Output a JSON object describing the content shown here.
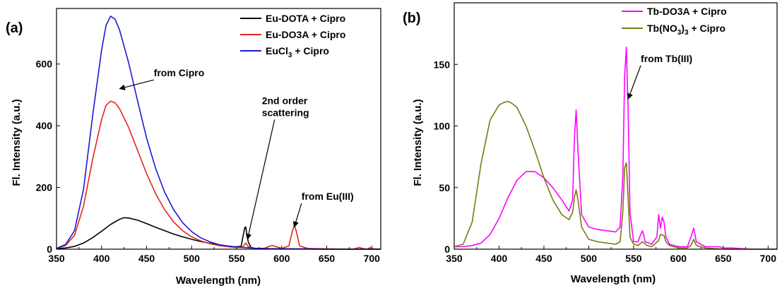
{
  "chart_data": [
    {
      "type": "line",
      "panel_label": "(a)",
      "xlabel": "Wavelength (nm)",
      "ylabel": "Fl. Intensity (a.u.)",
      "xlim": [
        350,
        710
      ],
      "ylim": [
        0,
        780
      ],
      "xticks": [
        350,
        400,
        450,
        500,
        550,
        600,
        650,
        700
      ],
      "yticks": [
        0,
        200,
        400,
        600
      ],
      "legend_position": "top-right",
      "series": [
        {
          "name": "Eu-DOTA + Cipro",
          "color": "#000000",
          "x": [
            350,
            360,
            370,
            380,
            390,
            400,
            410,
            420,
            425,
            430,
            440,
            450,
            460,
            470,
            480,
            490,
            500,
            510,
            520,
            530,
            540,
            550,
            555,
            557,
            559,
            560,
            561,
            563,
            566,
            570,
            580,
            600,
            650,
            710
          ],
          "y": [
            2,
            4,
            9,
            20,
            37,
            58,
            80,
            97,
            102,
            101,
            94,
            83,
            71,
            60,
            49,
            40,
            32,
            25,
            19,
            14,
            10,
            7,
            10,
            40,
            70,
            72,
            55,
            22,
            6,
            3,
            2,
            1,
            0,
            0
          ]
        },
        {
          "name": "Eu-DO3A + Cipro",
          "color": "#e8251f",
          "x": [
            350,
            360,
            370,
            380,
            390,
            400,
            405,
            410,
            415,
            420,
            430,
            440,
            450,
            460,
            470,
            480,
            490,
            500,
            510,
            520,
            530,
            540,
            550,
            557,
            560,
            563,
            570,
            580,
            587,
            590,
            593,
            600,
            608,
            612,
            614,
            616,
            620,
            630,
            650,
            680,
            686,
            690,
            695,
            698,
            702,
            710
          ],
          "y": [
            3,
            12,
            45,
            140,
            290,
            420,
            466,
            480,
            474,
            455,
            395,
            320,
            245,
            180,
            128,
            88,
            60,
            40,
            27,
            18,
            12,
            8,
            5,
            8,
            20,
            8,
            3,
            2,
            10,
            12,
            9,
            3,
            10,
            60,
            78,
            60,
            10,
            2,
            1,
            0,
            6,
            2,
            0,
            5,
            1,
            0
          ]
        },
        {
          "name": "EuCl$_3$ + Cipro",
          "legend_text": "EuCl",
          "legend_sub": "3",
          "legend_suffix": " + Cipro",
          "color": "#1a1ad6",
          "x": [
            350,
            360,
            370,
            380,
            390,
            400,
            405,
            410,
            415,
            420,
            430,
            440,
            450,
            460,
            470,
            480,
            490,
            500,
            510,
            520,
            530,
            540,
            550,
            560,
            570,
            580,
            600,
            620,
            650,
            680,
            710
          ],
          "y": [
            3,
            15,
            60,
            195,
            430,
            645,
            725,
            755,
            745,
            710,
            605,
            480,
            360,
            262,
            185,
            128,
            86,
            57,
            37,
            24,
            15,
            10,
            7,
            5,
            3,
            2,
            1,
            1,
            0,
            0,
            0
          ]
        }
      ],
      "annotations": [
        {
          "text": "from Cipro",
          "lines": [
            "from Cipro"
          ],
          "x": 458,
          "y": 560,
          "arrow_to": [
            420,
            520
          ]
        },
        {
          "text": "2nd order\nscattering",
          "lines": [
            "2nd order",
            "scattering"
          ],
          "x": 578,
          "y": 470,
          "arrow_to": [
            562,
            32
          ]
        },
        {
          "text": "from Eu(III)",
          "lines": [
            "from Eu(III)"
          ],
          "x": 622,
          "y": 160,
          "arrow_to": [
            614,
            72
          ]
        }
      ]
    },
    {
      "type": "line",
      "panel_label": "(b)",
      "xlabel": "Wavelength (nm)",
      "ylabel": "Fl. Intensity (a.u.)",
      "xlim": [
        350,
        710
      ],
      "ylim": [
        0,
        200
      ],
      "xticks": [
        350,
        400,
        450,
        500,
        550,
        600,
        650,
        700
      ],
      "yticks": [
        0,
        50,
        100,
        150
      ],
      "legend_position": "top-right",
      "series": [
        {
          "name": "Tb-DO3A + Cipro",
          "color": "#ff00ff",
          "x": [
            350,
            360,
            370,
            380,
            390,
            400,
            410,
            420,
            430,
            440,
            450,
            460,
            470,
            478,
            482,
            484,
            486,
            488,
            492,
            500,
            510,
            520,
            530,
            535,
            538,
            540,
            542,
            544,
            546,
            550,
            555,
            558,
            560,
            563,
            570,
            576,
            578,
            580,
            582,
            584,
            586,
            590,
            600,
            610,
            614,
            617,
            620,
            630,
            645,
            650,
            660,
            680,
            710
          ],
          "y": [
            2,
            2,
            3,
            5,
            12,
            25,
            42,
            56,
            63,
            63,
            58,
            50,
            40,
            31,
            40,
            90,
            113,
            80,
            28,
            18,
            16,
            15,
            14,
            18,
            60,
            140,
            164,
            110,
            30,
            6,
            6,
            12,
            15,
            6,
            4,
            10,
            28,
            17,
            26,
            22,
            10,
            4,
            2,
            2,
            10,
            17,
            6,
            2,
            2,
            1,
            1,
            0,
            0
          ]
        },
        {
          "name": "Tb(NO$_3$)$_3$ + Cipro",
          "legend_text": "Tb(NO",
          "legend_sub": "3",
          "legend_mid": ")",
          "legend_sub2": "3",
          "legend_suffix": " + Cipro",
          "color": "#7a7a12",
          "x": [
            350,
            360,
            370,
            380,
            390,
            400,
            405,
            410,
            415,
            420,
            430,
            440,
            450,
            460,
            470,
            478,
            482,
            484,
            486,
            488,
            492,
            500,
            510,
            520,
            530,
            535,
            538,
            540,
            542,
            544,
            546,
            550,
            555,
            560,
            565,
            570,
            578,
            580,
            584,
            586,
            590,
            600,
            610,
            614,
            617,
            620,
            630,
            650,
            680,
            710
          ],
          "y": [
            2,
            4,
            22,
            70,
            105,
            117,
            119,
            120,
            118,
            115,
            100,
            80,
            58,
            40,
            28,
            24,
            30,
            42,
            48,
            40,
            18,
            8,
            6,
            5,
            4,
            6,
            30,
            66,
            70,
            40,
            10,
            4,
            3,
            6,
            3,
            2,
            7,
            12,
            11,
            6,
            3,
            1,
            1,
            3,
            8,
            3,
            1,
            0,
            0,
            0
          ]
        }
      ],
      "annotations": [
        {
          "text": "from Tb(III)",
          "lines": [
            "from Tb(III)"
          ],
          "x": 558,
          "y": 152,
          "arrow_to": [
            544,
            122
          ]
        }
      ]
    }
  ]
}
